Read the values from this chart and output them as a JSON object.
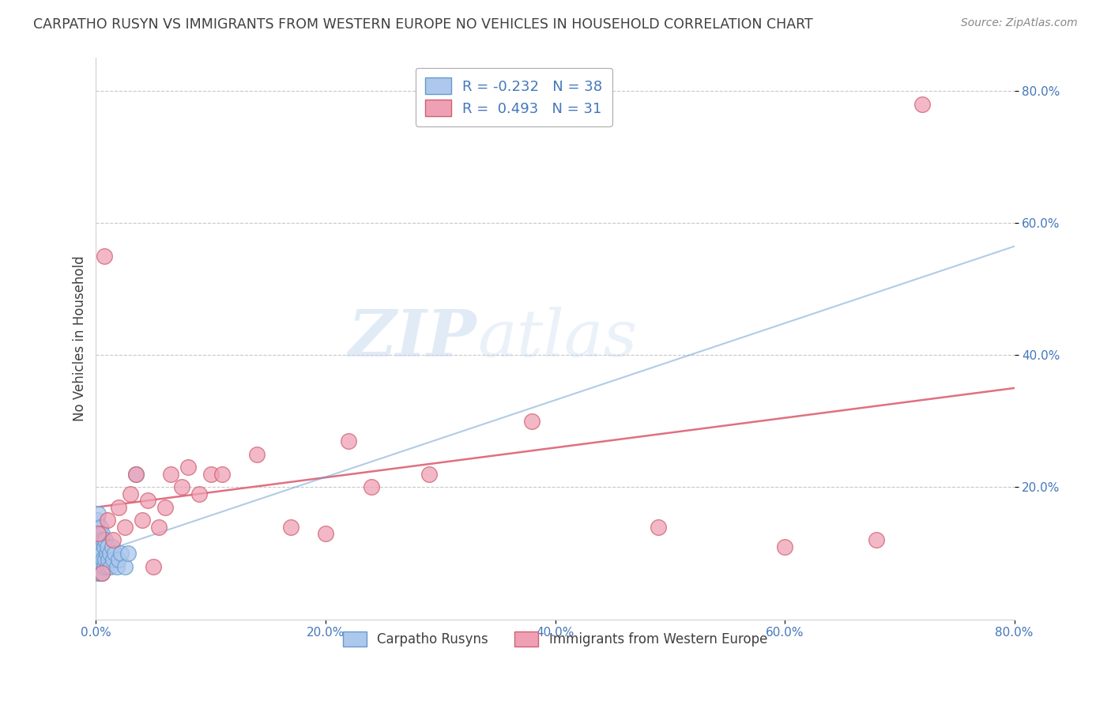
{
  "title": "CARPATHO RUSYN VS IMMIGRANTS FROM WESTERN EUROPE NO VEHICLES IN HOUSEHOLD CORRELATION CHART",
  "source": "Source: ZipAtlas.com",
  "ylabel": "No Vehicles in Household",
  "xlim": [
    0.0,
    0.8
  ],
  "ylim": [
    0.0,
    0.85
  ],
  "xtick_labels": [
    "0.0%",
    "20.0%",
    "40.0%",
    "60.0%",
    "80.0%"
  ],
  "xtick_values": [
    0.0,
    0.2,
    0.4,
    0.6,
    0.8
  ],
  "ytick_labels": [
    "20.0%",
    "40.0%",
    "60.0%",
    "80.0%"
  ],
  "ytick_values": [
    0.2,
    0.4,
    0.6,
    0.8
  ],
  "blue_R": -0.232,
  "blue_N": 38,
  "pink_R": 0.493,
  "pink_N": 31,
  "blue_color": "#adc8ed",
  "blue_edge": "#6699cc",
  "pink_color": "#f0a0b5",
  "pink_edge": "#d06070",
  "pink_line_color": "#e07080",
  "watermark_zip": "ZIP",
  "watermark_atlas": "atlas",
  "legend_label_blue": "Carpatho Rusyns",
  "legend_label_pink": "Immigrants from Western Europe",
  "blue_scatter_x": [
    0.001,
    0.001,
    0.001,
    0.001,
    0.002,
    0.002,
    0.002,
    0.002,
    0.003,
    0.003,
    0.003,
    0.004,
    0.004,
    0.004,
    0.005,
    0.005,
    0.005,
    0.006,
    0.006,
    0.007,
    0.007,
    0.008,
    0.008,
    0.009,
    0.01,
    0.01,
    0.011,
    0.012,
    0.013,
    0.014,
    0.015,
    0.016,
    0.018,
    0.02,
    0.022,
    0.025,
    0.028,
    0.035
  ],
  "blue_scatter_y": [
    0.07,
    0.09,
    0.12,
    0.15,
    0.08,
    0.1,
    0.13,
    0.16,
    0.07,
    0.1,
    0.13,
    0.08,
    0.11,
    0.14,
    0.07,
    0.1,
    0.13,
    0.09,
    0.12,
    0.08,
    0.11,
    0.09,
    0.12,
    0.1,
    0.08,
    0.11,
    0.09,
    0.1,
    0.08,
    0.11,
    0.09,
    0.1,
    0.08,
    0.09,
    0.1,
    0.08,
    0.1,
    0.22
  ],
  "pink_scatter_x": [
    0.002,
    0.005,
    0.007,
    0.01,
    0.015,
    0.02,
    0.025,
    0.03,
    0.035,
    0.04,
    0.045,
    0.05,
    0.055,
    0.06,
    0.065,
    0.075,
    0.08,
    0.09,
    0.1,
    0.11,
    0.14,
    0.17,
    0.2,
    0.22,
    0.24,
    0.29,
    0.38,
    0.49,
    0.6,
    0.68,
    0.72
  ],
  "pink_scatter_y": [
    0.13,
    0.07,
    0.55,
    0.15,
    0.12,
    0.17,
    0.14,
    0.19,
    0.22,
    0.15,
    0.18,
    0.08,
    0.14,
    0.17,
    0.22,
    0.2,
    0.23,
    0.19,
    0.22,
    0.22,
    0.25,
    0.14,
    0.13,
    0.27,
    0.2,
    0.22,
    0.3,
    0.14,
    0.11,
    0.12,
    0.78
  ],
  "background_color": "#ffffff",
  "grid_color": "#c8c8c8",
  "title_color": "#404040",
  "axis_color": "#4477bb",
  "tick_color": "#4477bb"
}
